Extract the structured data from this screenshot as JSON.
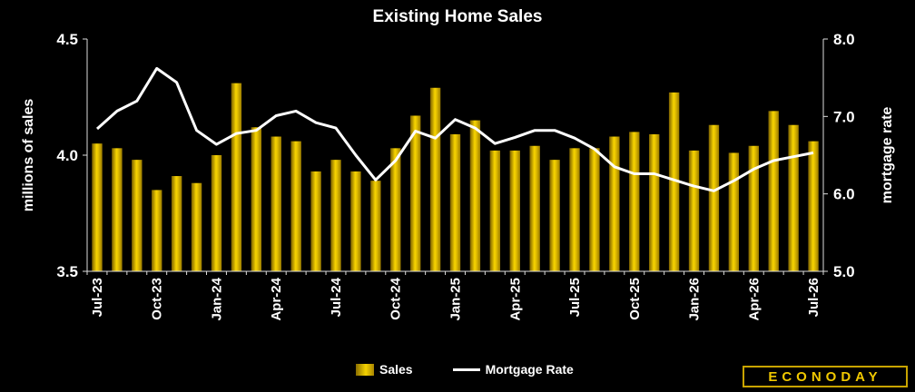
{
  "chart_data": {
    "type": "bar",
    "title": "Existing Home Sales",
    "categories": [
      "Jul-23",
      "Aug-23",
      "Sep-23",
      "Oct-23",
      "Nov-23",
      "Dec-23",
      "Jan-24",
      "Feb-24",
      "Mar-24",
      "Apr-24",
      "May-24",
      "Jun-24",
      "Jul-24",
      "Aug-24",
      "Sep-24",
      "Oct-24",
      "Nov-24",
      "Dec-24",
      "Jan-25",
      "Feb-25",
      "Mar-25",
      "Apr-25",
      "May-25",
      "Jun-25",
      "Jul-25",
      "Aug-25",
      "Sep-25",
      "Oct-25",
      "Nov-25",
      "Dec-25",
      "Jan-26",
      "Feb-26",
      "Mar-26",
      "Apr-26",
      "May-26",
      "Jun-26",
      "Jul-26"
    ],
    "x_tick_labels": [
      "Jul-23",
      "Oct-23",
      "Jan-24",
      "Apr-24",
      "Jul-24",
      "Oct-24",
      "Jan-25",
      "Apr-25",
      "Jul-25",
      "Oct-25",
      "Jan-26",
      "Apr-26",
      "Jul-26"
    ],
    "series": [
      {
        "name": "Sales",
        "type": "bar",
        "axis": "left",
        "values": [
          4.05,
          4.03,
          3.98,
          3.85,
          3.91,
          3.88,
          4.0,
          4.31,
          4.12,
          4.08,
          4.06,
          3.93,
          3.98,
          3.93,
          3.89,
          4.03,
          4.17,
          4.29,
          4.09,
          4.15,
          4.02,
          4.02,
          4.04,
          3.98,
          4.03,
          4.03,
          4.08,
          4.1,
          4.09,
          4.27,
          4.02,
          4.13,
          4.01,
          4.04,
          4.19,
          4.13,
          4.06
        ]
      },
      {
        "name": "Mortgage Rate",
        "type": "line",
        "axis": "right",
        "values": [
          6.84,
          7.07,
          7.2,
          7.62,
          7.44,
          6.82,
          6.64,
          6.78,
          6.82,
          7.01,
          7.07,
          6.92,
          6.85,
          6.5,
          6.18,
          6.43,
          6.81,
          6.72,
          6.96,
          6.85,
          6.65,
          6.73,
          6.82,
          6.82,
          6.72,
          6.58,
          6.35,
          6.26,
          6.26,
          6.18,
          6.1,
          6.04,
          6.17,
          6.32,
          6.43,
          6.48,
          6.53
        ]
      }
    ],
    "ylabel_left": "millions of sales",
    "ylabel_right": "mortgage rate",
    "ylim_left": [
      3.5,
      4.5
    ],
    "ylim_right": [
      5.0,
      8.0
    ],
    "yticks_left": [
      "3.5",
      "4.0",
      "4.5"
    ],
    "yticks_right": [
      "5.0",
      "6.0",
      "7.0",
      "8.0"
    ],
    "grid": false,
    "legend_placement": "bottom-center",
    "colors": {
      "bar": "#e8c400",
      "bar_dark": "#8a6d00",
      "line": "#ffffff",
      "background": "#000000",
      "axis": "#ffffff"
    }
  },
  "legend": {
    "sales_label": "Sales",
    "rate_label": "Mortgage Rate"
  },
  "branding": {
    "logo_text": "ECONODAY"
  }
}
